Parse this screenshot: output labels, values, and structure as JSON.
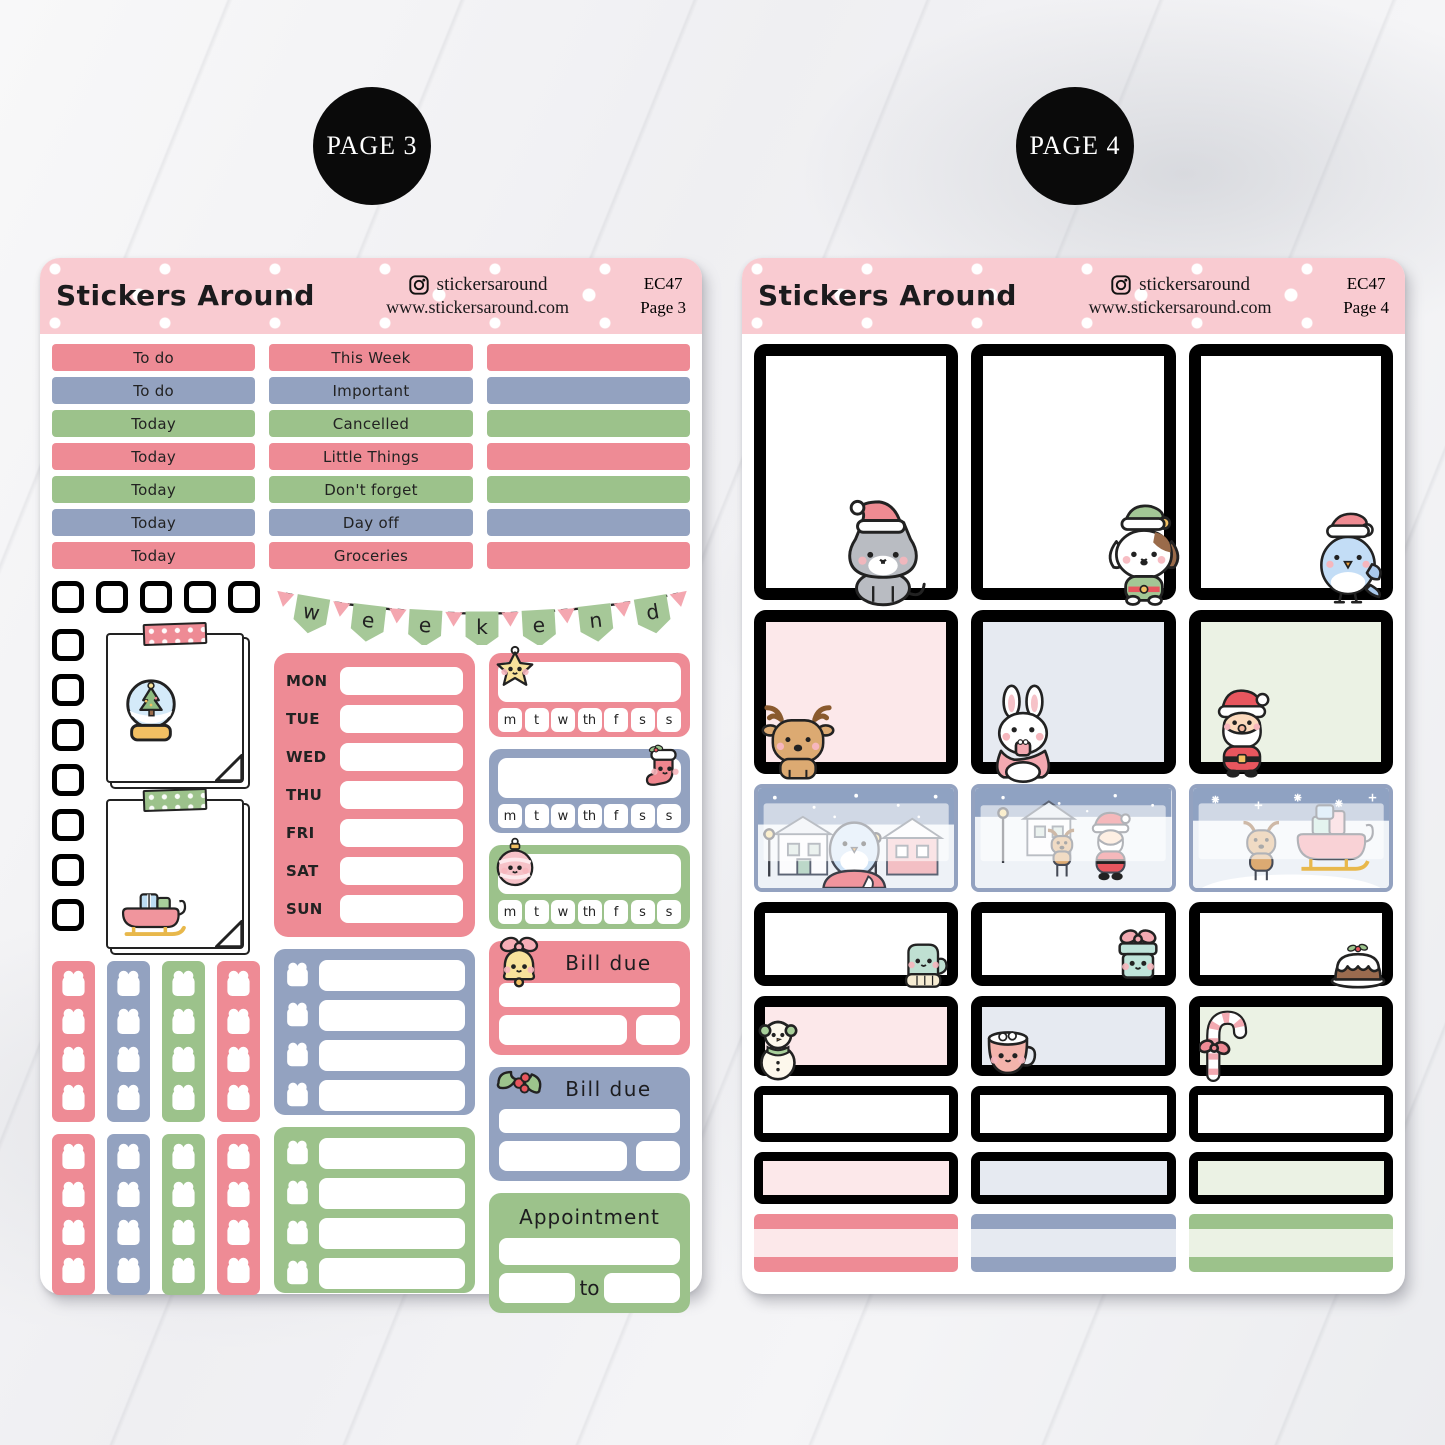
{
  "badges": [
    {
      "label": "PAGE 3"
    },
    {
      "label": "PAGE 4"
    }
  ],
  "palette": {
    "pink": "#ee8b95",
    "blue": "#93a2c0",
    "green": "#9cc28b",
    "pinkLight": "#fce8ea",
    "blueLight": "#e6eaf1",
    "greenLight": "#ebf2e4",
    "headerPink": "#f9cbd1",
    "bannerGreen": "#a6c898",
    "bannerPink": "#f4a7b0",
    "ink": "#222222"
  },
  "sheet3": {
    "header": {
      "brand": "Stickers Around",
      "instagram": "stickersaround",
      "website": "www.stickersaround.com",
      "code": "EC47",
      "page": "Page 3"
    },
    "label_rows": [
      {
        "color": "pink",
        "left": "To do",
        "mid": "This Week"
      },
      {
        "color": "blue",
        "left": "To do",
        "mid": "Important"
      },
      {
        "color": "green",
        "left": "Today",
        "mid": "Cancelled"
      },
      {
        "color": "pink",
        "left": "Today",
        "mid": "Little Things"
      },
      {
        "color": "green",
        "left": "Today",
        "mid": "Don't forget"
      },
      {
        "color": "blue",
        "left": "Today",
        "mid": "Day off"
      },
      {
        "color": "pink",
        "left": "Today",
        "mid": "Groceries"
      }
    ],
    "checkbox_row": [
      "pink",
      "blue",
      "green",
      "pink",
      "blue"
    ],
    "checkbox_column": [
      "blue",
      "green",
      "pink",
      "blue",
      "green",
      "pink",
      "blue"
    ],
    "notes": [
      {
        "tape": "pink",
        "icon": "snow-globe-icon"
      },
      {
        "tape": "green",
        "icon": "sleigh-icon"
      }
    ],
    "banner_letters": [
      "w",
      "e",
      "e",
      "k",
      "e",
      "n",
      "d"
    ],
    "weekdays": [
      "MON",
      "TUE",
      "WED",
      "THU",
      "FRI",
      "SAT",
      "SUN"
    ],
    "tracker_days": [
      "m",
      "t",
      "w",
      "th",
      "f",
      "s",
      "s"
    ],
    "habit_trackers": [
      {
        "color": "pink",
        "icon": "star-icon",
        "icon_side": "left"
      },
      {
        "color": "blue",
        "icon": "stocking-icon",
        "icon_side": "right"
      },
      {
        "color": "green",
        "icon": "bauble-icon",
        "icon_side": "left"
      }
    ],
    "gift_strip_groups": [
      [
        "pink",
        "blue",
        "green",
        "pink"
      ],
      [
        "pink",
        "blue",
        "green",
        "pink"
      ]
    ],
    "gifts_per_strip": 4,
    "list_boxes": [
      {
        "color": "blue",
        "rows": 4
      },
      {
        "color": "green",
        "rows": 4
      }
    ],
    "bill_due": [
      {
        "color": "pink",
        "label": "Bill due",
        "icon": "bell-icon"
      },
      {
        "color": "blue",
        "label": "Bill due",
        "icon": "holly-icon"
      }
    ],
    "appointment": {
      "color": "green",
      "label": "Appointment",
      "to_label": "to"
    }
  },
  "sheet4": {
    "header": {
      "brand": "Stickers Around",
      "instagram": "stickersaround",
      "website": "www.stickersaround.com",
      "code": "EC47",
      "page": "Page 4"
    },
    "full_boxes": [
      {
        "color": "pink",
        "icon": "cat-santa-icon"
      },
      {
        "color": "blue",
        "icon": "dog-elf-icon"
      },
      {
        "color": "green",
        "icon": "bird-santa-icon"
      }
    ],
    "half_boxes": [
      {
        "color": "pink",
        "icon": "reindeer-icon"
      },
      {
        "color": "blue",
        "icon": "bunny-cocoa-icon"
      },
      {
        "color": "green",
        "icon": "santa-icon"
      }
    ],
    "scene_boxes": [
      {
        "name": "winter-village-bird-scene"
      },
      {
        "name": "santa-reindeer-scene"
      },
      {
        "name": "reindeer-sleigh-scene"
      }
    ],
    "icon_boxes_right": [
      {
        "color": "pink",
        "icon": "mitten-icon"
      },
      {
        "color": "blue",
        "icon": "gift-icon"
      },
      {
        "color": "green",
        "icon": "pudding-icon"
      }
    ],
    "icon_boxes_left": [
      {
        "color": "pink",
        "icon": "snowman-icon"
      },
      {
        "color": "blue",
        "icon": "cocoa-icon"
      },
      {
        "color": "green",
        "icon": "candy-cane-icon"
      }
    ],
    "blank_boxes_white": [
      "pink",
      "blue",
      "green"
    ],
    "blank_boxes_tinted": [
      "pink",
      "blue",
      "green"
    ],
    "sandwich_strips": [
      "pink",
      "blue",
      "green"
    ]
  }
}
